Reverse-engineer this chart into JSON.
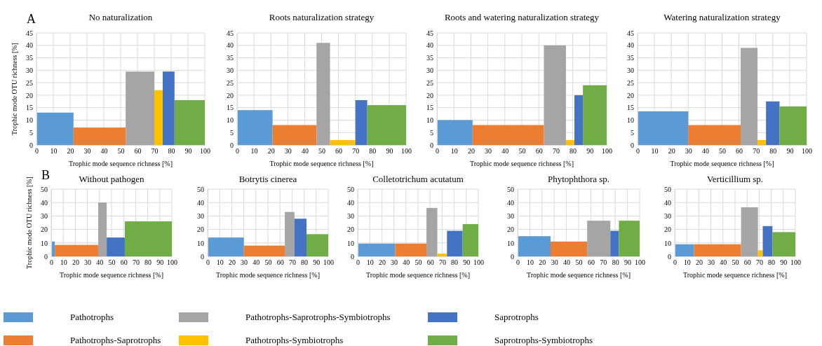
{
  "chart_data": [
    {
      "type": "histogram",
      "title": "No naturalization",
      "xlabel": "Trophic mode sequence richness [%]",
      "ylabel": "Trophic mode OTU richness [%]",
      "annotations": [
        "A"
      ],
      "bins": [
        0,
        22,
        53,
        70,
        75,
        82,
        100
      ],
      "values": [
        13,
        7,
        29.5,
        22,
        29.5,
        18
      ],
      "colors": [
        "#5b9bd5",
        "#ed7d31",
        "#a5a5a5",
        "#ffc000",
        "#4472c4",
        "#70ad47"
      ],
      "xlim": [
        0,
        100
      ],
      "xticks": [
        0,
        10,
        20,
        30,
        40,
        50,
        60,
        70,
        80,
        90,
        100
      ],
      "ylim": [
        0,
        45
      ],
      "yticks": [
        0,
        5,
        10,
        15,
        20,
        25,
        30,
        35,
        40,
        45
      ],
      "grid": true
    },
    {
      "type": "histogram",
      "title": "Roots naturalization strategy",
      "xlabel": "Trophic mode sequence richness [%]",
      "bins": [
        0,
        21,
        47,
        55,
        70,
        77,
        100
      ],
      "values": [
        14,
        8,
        41,
        2,
        18,
        16
      ],
      "colors": [
        "#5b9bd5",
        "#ed7d31",
        "#a5a5a5",
        "#ffc000",
        "#4472c4",
        "#70ad47"
      ],
      "xlim": [
        0,
        100
      ],
      "xticks": [
        0,
        10,
        20,
        30,
        40,
        50,
        60,
        70,
        80,
        90,
        100
      ],
      "ylim": [
        0,
        45
      ],
      "yticks": [
        0,
        5,
        10,
        15,
        20,
        25,
        30,
        35,
        40,
        45
      ],
      "grid": true
    },
    {
      "type": "histogram",
      "title": "Roots and watering naturalization strategy",
      "xlabel": "Trophic mode sequence richness [%]",
      "bins": [
        0,
        21,
        63,
        76,
        81,
        86,
        100
      ],
      "values": [
        10,
        8,
        40,
        2,
        20,
        24
      ],
      "colors": [
        "#5b9bd5",
        "#ed7d31",
        "#a5a5a5",
        "#ffc000",
        "#4472c4",
        "#70ad47"
      ],
      "xlim": [
        0,
        100
      ],
      "xticks": [
        0,
        10,
        20,
        30,
        40,
        50,
        60,
        70,
        80,
        90,
        100
      ],
      "ylim": [
        0,
        45
      ],
      "yticks": [
        0,
        5,
        10,
        15,
        20,
        25,
        30,
        35,
        40,
        45
      ],
      "grid": true
    },
    {
      "type": "histogram",
      "title": "Watering naturalization strategy",
      "xlabel": "Trophic mode sequence richness [%]",
      "bins": [
        0,
        30,
        61,
        71,
        76,
        84,
        100
      ],
      "values": [
        13.5,
        8,
        39,
        2,
        17.5,
        15.5
      ],
      "colors": [
        "#5b9bd5",
        "#ed7d31",
        "#a5a5a5",
        "#ffc000",
        "#4472c4",
        "#70ad47"
      ],
      "xlim": [
        0,
        100
      ],
      "xticks": [
        0,
        10,
        20,
        30,
        40,
        50,
        60,
        70,
        80,
        90,
        100
      ],
      "ylim": [
        0,
        45
      ],
      "yticks": [
        0,
        5,
        10,
        15,
        20,
        25,
        30,
        35,
        40,
        45
      ],
      "grid": true
    },
    {
      "type": "histogram",
      "title": "Without pathogen",
      "xlabel": "Trophic mode sequence richness [%]",
      "ylabel": "Trophic mode OTU richness [%]",
      "annotations": [
        "B"
      ],
      "bins": [
        0,
        3,
        39,
        46,
        61,
        100
      ],
      "values": [
        11,
        8.5,
        40,
        14,
        26
      ],
      "colors": [
        "#5b9bd5",
        "#ed7d31",
        "#a5a5a5",
        "#4472c4",
        "#70ad47"
      ],
      "xlim": [
        0,
        100
      ],
      "xticks": [
        0,
        10,
        20,
        30,
        40,
        50,
        60,
        70,
        80,
        90,
        100
      ],
      "ylim": [
        0,
        50
      ],
      "yticks": [
        0,
        10,
        20,
        30,
        40,
        50
      ],
      "grid": true
    },
    {
      "type": "histogram",
      "title": "Botrytis cinerea",
      "xlabel": "Trophic mode sequence richness [%]",
      "bins": [
        0,
        30,
        64,
        72,
        82,
        100
      ],
      "values": [
        14,
        8,
        33,
        28,
        16.5
      ],
      "colors": [
        "#5b9bd5",
        "#ed7d31",
        "#a5a5a5",
        "#4472c4",
        "#70ad47"
      ],
      "xlim": [
        0,
        100
      ],
      "xticks": [
        0,
        10,
        20,
        30,
        40,
        50,
        60,
        70,
        80,
        90,
        100
      ],
      "ylim": [
        0,
        50
      ],
      "yticks": [
        0,
        10,
        20,
        30,
        40,
        50
      ],
      "grid": true
    },
    {
      "type": "histogram",
      "title": "Colletotrichum acutatum",
      "xlabel": "Trophic mode sequence richness [%]",
      "bins": [
        0,
        31,
        57,
        66,
        74,
        87,
        100
      ],
      "values": [
        9.5,
        9.5,
        36,
        2,
        19,
        24
      ],
      "colors": [
        "#5b9bd5",
        "#ed7d31",
        "#a5a5a5",
        "#ffc000",
        "#4472c4",
        "#70ad47"
      ],
      "xlim": [
        0,
        100
      ],
      "xticks": [
        0,
        10,
        20,
        30,
        40,
        50,
        60,
        70,
        80,
        90,
        100
      ],
      "ylim": [
        0,
        50
      ],
      "yticks": [
        0,
        10,
        20,
        30,
        40,
        50
      ],
      "grid": true
    },
    {
      "type": "histogram",
      "title": "Phytophthora sp.",
      "xlabel": "Trophic mode sequence richness [%]",
      "bins": [
        0,
        27,
        57,
        76,
        83,
        100
      ],
      "values": [
        15,
        11,
        26.5,
        19,
        26.5
      ],
      "colors": [
        "#5b9bd5",
        "#ed7d31",
        "#a5a5a5",
        "#4472c4",
        "#70ad47"
      ],
      "xlim": [
        0,
        100
      ],
      "xticks": [
        0,
        10,
        20,
        30,
        40,
        50,
        60,
        70,
        80,
        90,
        100
      ],
      "ylim": [
        0,
        50
      ],
      "yticks": [
        0,
        10,
        20,
        30,
        40,
        50
      ],
      "grid": true
    },
    {
      "type": "histogram",
      "title": "Verticillium sp.",
      "xlabel": "Trophic mode sequence richness [%]",
      "bins": [
        0,
        16,
        55,
        69,
        73,
        81,
        100
      ],
      "values": [
        9,
        9,
        36.5,
        4.5,
        22.5,
        18
      ],
      "colors": [
        "#5b9bd5",
        "#ed7d31",
        "#a5a5a5",
        "#ffc000",
        "#4472c4",
        "#70ad47"
      ],
      "xlim": [
        0,
        100
      ],
      "xticks": [
        0,
        10,
        20,
        30,
        40,
        50,
        60,
        70,
        80,
        90,
        100
      ],
      "ylim": [
        0,
        50
      ],
      "yticks": [
        0,
        10,
        20,
        30,
        40,
        50
      ],
      "grid": true
    },
    {
      "type": "other",
      "categories": [
        "Pathotrophs",
        "Pathotrophs-Saprotrophs",
        "Pathotrophs-Saprotrophs-Symbiotrophs",
        "Pathotrophs-Symbiotrophs",
        "Saprotrophs",
        "Saprotrophs-Symbiotrophs"
      ],
      "colors": [
        "#5b9bd5",
        "#ed7d31",
        "#a5a5a5",
        "#ffc000",
        "#4472c4",
        "#70ad47"
      ]
    }
  ]
}
